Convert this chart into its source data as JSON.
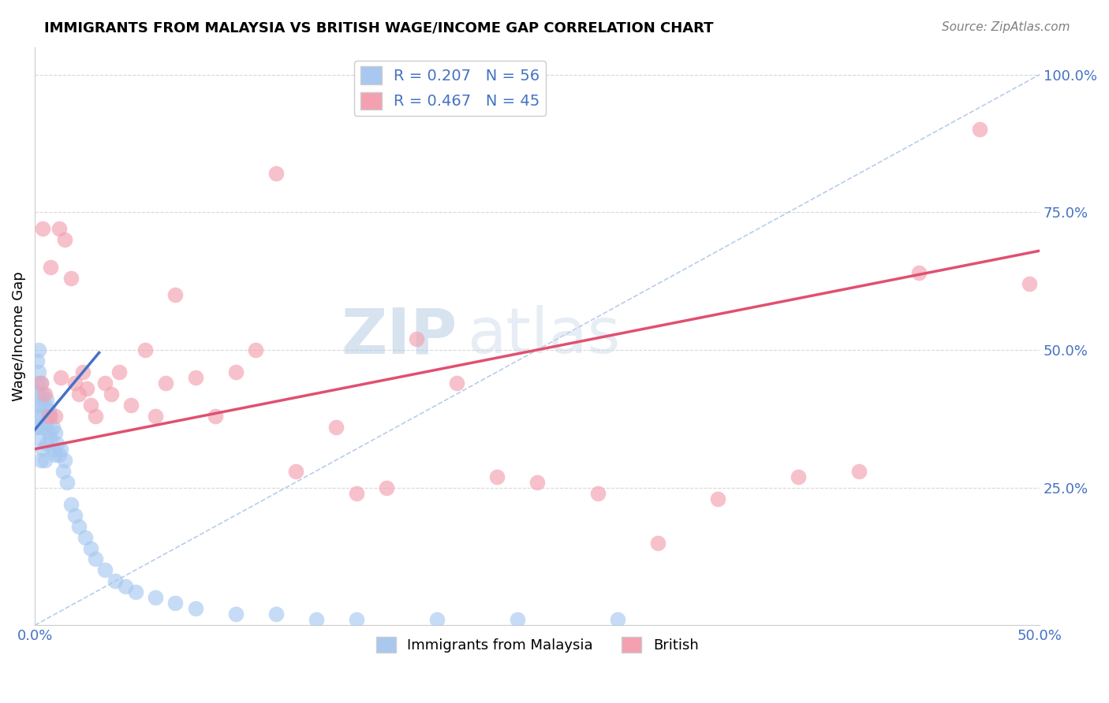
{
  "title": "IMMIGRANTS FROM MALAYSIA VS BRITISH WAGE/INCOME GAP CORRELATION CHART",
  "source": "Source: ZipAtlas.com",
  "ylabel": "Wage/Income Gap",
  "xlim": [
    0.0,
    0.5
  ],
  "ylim": [
    0.0,
    1.05
  ],
  "y_ticks_right": [
    0.25,
    0.5,
    0.75,
    1.0
  ],
  "y_tick_labels_right": [
    "25.0%",
    "50.0%",
    "75.0%",
    "100.0%"
  ],
  "legend_label_blue": "R = 0.207   N = 56",
  "legend_label_pink": "R = 0.467   N = 45",
  "legend_label_bottom_blue": "Immigrants from Malaysia",
  "legend_label_bottom_pink": "British",
  "blue_color": "#a8c8f0",
  "blue_line_color": "#4472c4",
  "pink_color": "#f4a0b0",
  "pink_line_color": "#e05070",
  "diag_line_color": "#b0c8e8",
  "watermark_zip": "ZIP",
  "watermark_atlas": "atlas",
  "blue_scatter_x": [
    0.001,
    0.001,
    0.001,
    0.001,
    0.002,
    0.002,
    0.002,
    0.002,
    0.002,
    0.003,
    0.003,
    0.003,
    0.003,
    0.004,
    0.004,
    0.004,
    0.005,
    0.005,
    0.005,
    0.006,
    0.006,
    0.006,
    0.007,
    0.007,
    0.008,
    0.008,
    0.009,
    0.009,
    0.01,
    0.01,
    0.011,
    0.012,
    0.013,
    0.014,
    0.015,
    0.016,
    0.018,
    0.02,
    0.022,
    0.025,
    0.028,
    0.03,
    0.035,
    0.04,
    0.045,
    0.05,
    0.06,
    0.07,
    0.08,
    0.1,
    0.12,
    0.14,
    0.16,
    0.2,
    0.24,
    0.29
  ],
  "blue_scatter_y": [
    0.36,
    0.4,
    0.44,
    0.48,
    0.34,
    0.38,
    0.42,
    0.46,
    0.5,
    0.3,
    0.36,
    0.4,
    0.44,
    0.32,
    0.38,
    0.42,
    0.3,
    0.36,
    0.4,
    0.33,
    0.37,
    0.41,
    0.35,
    0.39,
    0.34,
    0.38,
    0.32,
    0.36,
    0.31,
    0.35,
    0.33,
    0.31,
    0.32,
    0.28,
    0.3,
    0.26,
    0.22,
    0.2,
    0.18,
    0.16,
    0.14,
    0.12,
    0.1,
    0.08,
    0.07,
    0.06,
    0.05,
    0.04,
    0.03,
    0.02,
    0.02,
    0.01,
    0.01,
    0.01,
    0.01,
    0.01
  ],
  "pink_scatter_x": [
    0.003,
    0.004,
    0.005,
    0.007,
    0.008,
    0.01,
    0.012,
    0.013,
    0.015,
    0.018,
    0.02,
    0.022,
    0.024,
    0.026,
    0.028,
    0.03,
    0.035,
    0.038,
    0.042,
    0.048,
    0.055,
    0.06,
    0.065,
    0.07,
    0.08,
    0.09,
    0.1,
    0.11,
    0.12,
    0.13,
    0.15,
    0.16,
    0.175,
    0.19,
    0.21,
    0.23,
    0.25,
    0.28,
    0.31,
    0.34,
    0.38,
    0.41,
    0.44,
    0.47,
    0.495
  ],
  "pink_scatter_y": [
    0.44,
    0.72,
    0.42,
    0.38,
    0.65,
    0.38,
    0.72,
    0.45,
    0.7,
    0.63,
    0.44,
    0.42,
    0.46,
    0.43,
    0.4,
    0.38,
    0.44,
    0.42,
    0.46,
    0.4,
    0.5,
    0.38,
    0.44,
    0.6,
    0.45,
    0.38,
    0.46,
    0.5,
    0.82,
    0.28,
    0.36,
    0.24,
    0.25,
    0.52,
    0.44,
    0.27,
    0.26,
    0.24,
    0.15,
    0.23,
    0.27,
    0.28,
    0.64,
    0.9,
    0.62
  ],
  "blue_line_x": [
    0.0,
    0.032
  ],
  "blue_line_y": [
    0.355,
    0.495
  ],
  "pink_line_x": [
    0.0,
    0.5
  ],
  "pink_line_y": [
    0.32,
    0.68
  ],
  "diag_line_x": [
    0.0,
    0.5
  ],
  "diag_line_y": [
    0.0,
    1.0
  ],
  "background_color": "#ffffff",
  "grid_color": "#d8d8d8"
}
